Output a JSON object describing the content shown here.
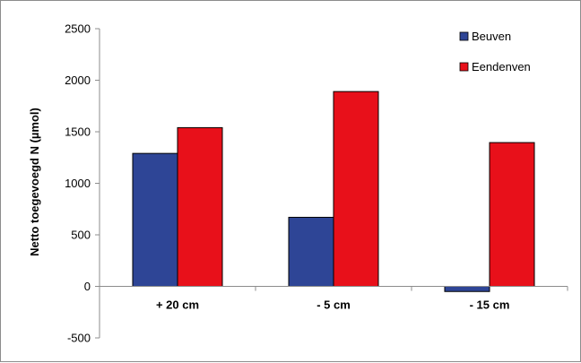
{
  "chart_data": {
    "type": "bar",
    "title": "",
    "xlabel": "",
    "ylabel": "Netto toegevoegd N (µmol)",
    "categories": [
      "+ 20 cm",
      "- 5 cm",
      "- 15 cm"
    ],
    "series": [
      {
        "name": "Beuven",
        "color": "#2E4596",
        "values": [
          1290,
          670,
          -50
        ]
      },
      {
        "name": "Eendenven",
        "color": "#E8101A",
        "values": [
          1540,
          1890,
          1395
        ]
      }
    ],
    "ylim": [
      -500,
      2500
    ],
    "yticks": [
      -500,
      0,
      500,
      1000,
      1500,
      2000,
      2500
    ],
    "ytick_labels": [
      "-500",
      "0",
      "500",
      "1000",
      "1500",
      "2000",
      "2500"
    ],
    "grid": false,
    "legend_position": "top-right"
  }
}
